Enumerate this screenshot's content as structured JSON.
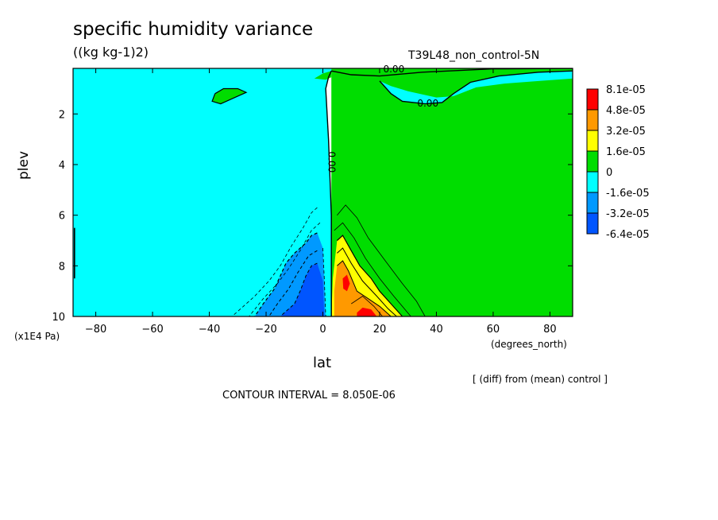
{
  "chart_data": {
    "type": "heatmap",
    "title": "specific humidity variance",
    "subtitle": "((kg kg-1)2)",
    "run_label": "T39L48_non_control-5N",
    "xlabel": "lat",
    "x_unit": "(degrees_north)",
    "ylabel": "plev",
    "y_unit": "(x1E4 Pa)",
    "footnote": "[ (diff) from (mean) control ]",
    "contour_interval_label": "CONTOUR INTERVAL = 8.050E-06",
    "xlim": [
      -88,
      88
    ],
    "ylim": [
      10,
      0.2
    ],
    "x_ticks": [
      -80,
      -60,
      -40,
      -20,
      0,
      20,
      40,
      60,
      80
    ],
    "y_ticks": [
      2,
      4,
      6,
      8,
      10
    ],
    "legend": {
      "placement": "right",
      "colors": [
        "#ff0000",
        "#ff9900",
        "#ffff00",
        "#00dd00",
        "#00ffff",
        "#0099ff",
        "#0055ff"
      ],
      "labels": [
        "8.1e-05",
        "4.8e-05",
        "3.2e-05",
        "1.6e-05",
        "0",
        "-1.6e-05",
        "-3.2e-05",
        "-6.4e-05"
      ]
    },
    "contour_labels": [
      {
        "text": "0.00",
        "x": 25,
        "y": 0.25,
        "rotate": 0
      },
      {
        "text": "0.00",
        "x": 37,
        "y": 1.6,
        "rotate": 0
      },
      {
        "text": "0.00",
        "x": 3,
        "y": 3.9,
        "rotate": 90
      }
    ],
    "regions": [
      {
        "fill": "#00dd00",
        "points": [
          [
            3,
            0.2
          ],
          [
            88,
            0.2
          ],
          [
            88,
            10
          ],
          [
            3,
            10
          ]
        ]
      },
      {
        "fill": "#00dd00",
        "points": [
          [
            3,
            0.3
          ],
          [
            10,
            0.45
          ],
          [
            20,
            0.5
          ],
          [
            35,
            0.35
          ],
          [
            60,
            0.22
          ],
          [
            88,
            0.2
          ],
          [
            88,
            0.2
          ],
          [
            3,
            0.2
          ]
        ]
      },
      {
        "fill": "#00ffff",
        "points": [
          [
            20,
            0.7
          ],
          [
            24,
            1.2
          ],
          [
            28,
            1.5
          ],
          [
            36,
            1.6
          ],
          [
            42,
            1.55
          ],
          [
            46,
            1.2
          ],
          [
            52,
            0.75
          ],
          [
            62,
            0.5
          ],
          [
            76,
            0.35
          ],
          [
            88,
            0.3
          ],
          [
            88,
            0.6
          ],
          [
            76,
            0.7
          ],
          [
            64,
            0.8
          ],
          [
            54,
            0.95
          ],
          [
            46,
            1.3
          ],
          [
            40,
            1.35
          ],
          [
            30,
            1.1
          ],
          [
            24,
            0.9
          ]
        ]
      },
      {
        "fill": "#00ffff",
        "points": [
          [
            3,
            0.2
          ],
          [
            3,
            0.3
          ],
          [
            2,
            0.55
          ],
          [
            1,
            1.0
          ],
          [
            2,
            3.0
          ],
          [
            3,
            6.0
          ],
          [
            3,
            10
          ],
          [
            -88,
            10
          ],
          [
            -88,
            0.2
          ]
        ]
      },
      {
        "fill": "#00dd00",
        "points": [
          [
            -38,
            1.2
          ],
          [
            -35,
            1.0
          ],
          [
            -30,
            1.0
          ],
          [
            -27,
            1.15
          ],
          [
            -31,
            1.35
          ],
          [
            -36,
            1.6
          ],
          [
            -39,
            1.5
          ]
        ]
      },
      {
        "fill": "#00dd00",
        "points": [
          [
            -3,
            0.6
          ],
          [
            0,
            0.4
          ],
          [
            3,
            0.3
          ],
          [
            3,
            0.55
          ],
          [
            1,
            0.65
          ]
        ]
      },
      {
        "fill": "#0099ff",
        "points": [
          [
            -2,
            6.7
          ],
          [
            0,
            7.3
          ],
          [
            0.5,
            8.5
          ],
          [
            1,
            10
          ],
          [
            -24,
            10
          ],
          [
            -21,
            9.5
          ],
          [
            -17,
            8.9
          ],
          [
            -15,
            8.4
          ],
          [
            -13,
            7.9
          ],
          [
            -10,
            7.5
          ],
          [
            -6,
            7.1
          ],
          [
            -4,
            6.8
          ]
        ]
      },
      {
        "fill": "#0055ff",
        "points": [
          [
            -4,
            8.0
          ],
          [
            -2,
            7.9
          ],
          [
            0,
            8.6
          ],
          [
            0.5,
            10
          ],
          [
            -15,
            10
          ],
          [
            -13,
            9.8
          ],
          [
            -10,
            9.5
          ],
          [
            -8,
            9.0
          ],
          [
            -6,
            8.4
          ]
        ]
      },
      {
        "fill": "#ffff00",
        "points": [
          [
            5,
            7.0
          ],
          [
            7,
            6.8
          ],
          [
            10,
            7.4
          ],
          [
            13,
            8.0
          ],
          [
            17,
            8.5
          ],
          [
            20,
            9.0
          ],
          [
            24,
            9.5
          ],
          [
            28,
            10
          ],
          [
            3,
            10
          ],
          [
            3.5,
            8.5
          ]
        ]
      },
      {
        "fill": "#ff9900",
        "points": [
          [
            5,
            8.0
          ],
          [
            7,
            7.8
          ],
          [
            9,
            8.2
          ],
          [
            12,
            9.0
          ],
          [
            16,
            9.3
          ],
          [
            20,
            9.6
          ],
          [
            24,
            10
          ],
          [
            4,
            10
          ],
          [
            4,
            9.0
          ]
        ]
      },
      {
        "fill": "#ff9900",
        "points": [
          [
            6,
            8.6
          ],
          [
            8,
            8.2
          ],
          [
            10,
            8.6
          ],
          [
            10,
            9.1
          ],
          [
            8,
            9.4
          ],
          [
            6,
            9.1
          ]
        ]
      },
      {
        "fill": "#ff0000",
        "points": [
          [
            7,
            8.5
          ],
          [
            8.5,
            8.35
          ],
          [
            9.5,
            8.7
          ],
          [
            8.5,
            9.0
          ],
          [
            7.2,
            8.9
          ]
        ]
      },
      {
        "fill": "#ff0000",
        "points": [
          [
            12,
            9.85
          ],
          [
            14,
            9.65
          ],
          [
            17,
            9.72
          ],
          [
            19,
            10
          ],
          [
            12,
            10
          ]
        ]
      }
    ],
    "contours": [
      {
        "dash": false,
        "width": 1.4,
        "points": [
          [
            3,
            0.3
          ],
          [
            2,
            0.55
          ],
          [
            1,
            1.0
          ],
          [
            2,
            3.0
          ],
          [
            3,
            6.0
          ],
          [
            3,
            10
          ]
        ]
      },
      {
        "dash": false,
        "width": 1.4,
        "points": [
          [
            3,
            0.3
          ],
          [
            10,
            0.45
          ],
          [
            20,
            0.5
          ],
          [
            35,
            0.35
          ],
          [
            60,
            0.22
          ],
          [
            88,
            0.2
          ]
        ]
      },
      {
        "dash": false,
        "width": 1.4,
        "points": [
          [
            20,
            0.7
          ],
          [
            24,
            1.2
          ],
          [
            28,
            1.5
          ],
          [
            36,
            1.6
          ],
          [
            42,
            1.55
          ],
          [
            46,
            1.2
          ],
          [
            52,
            0.75
          ],
          [
            62,
            0.5
          ],
          [
            76,
            0.35
          ],
          [
            88,
            0.3
          ]
        ]
      },
      {
        "dash": false,
        "width": 1.2,
        "points": [
          [
            -38,
            1.2
          ],
          [
            -35,
            1.0
          ],
          [
            -30,
            1.0
          ],
          [
            -27,
            1.15
          ],
          [
            -31,
            1.35
          ],
          [
            -36,
            1.6
          ],
          [
            -39,
            1.5
          ],
          [
            -38,
            1.2
          ]
        ]
      },
      {
        "dash": false,
        "width": 0.8,
        "points": [
          [
            5,
            6.0
          ],
          [
            8,
            5.6
          ],
          [
            12,
            6.1
          ],
          [
            16,
            6.9
          ],
          [
            22,
            7.8
          ],
          [
            28,
            8.7
          ],
          [
            33,
            9.4
          ],
          [
            36,
            10
          ]
        ]
      },
      {
        "dash": false,
        "width": 0.8,
        "points": [
          [
            4,
            6.6
          ],
          [
            7,
            6.3
          ],
          [
            11,
            6.9
          ],
          [
            15,
            7.7
          ],
          [
            20,
            8.5
          ],
          [
            25,
            9.2
          ],
          [
            31,
            10
          ]
        ]
      },
      {
        "dash": false,
        "width": 1.2,
        "points": [
          [
            5,
            7.0
          ],
          [
            7,
            6.8
          ],
          [
            10,
            7.4
          ],
          [
            13,
            8.0
          ],
          [
            17,
            8.5
          ],
          [
            20,
            9.0
          ],
          [
            24,
            9.5
          ],
          [
            28,
            10
          ]
        ]
      },
      {
        "dash": false,
        "width": 1.0,
        "points": [
          [
            5,
            7.5
          ],
          [
            7,
            7.3
          ],
          [
            10,
            7.9
          ],
          [
            14,
            8.6
          ],
          [
            19,
            9.2
          ],
          [
            23,
            9.7
          ],
          [
            26,
            10
          ]
        ]
      },
      {
        "dash": false,
        "width": 1.0,
        "points": [
          [
            5,
            8.0
          ],
          [
            7,
            7.8
          ],
          [
            9,
            8.2
          ],
          [
            12,
            9.0
          ],
          [
            16,
            9.3
          ],
          [
            20,
            9.6
          ],
          [
            24,
            10
          ]
        ]
      },
      {
        "dash": false,
        "width": 0.8,
        "points": [
          [
            10,
            9.5
          ],
          [
            14,
            9.2
          ],
          [
            18,
            9.6
          ],
          [
            21,
            10
          ]
        ]
      },
      {
        "dash": true,
        "width": 0.8,
        "points": [
          [
            -2,
            5.7
          ],
          [
            -4,
            5.9
          ],
          [
            -7,
            6.5
          ],
          [
            -11,
            7.2
          ],
          [
            -15,
            8.0
          ],
          [
            -19,
            8.6
          ],
          [
            -24,
            9.2
          ],
          [
            -28,
            9.6
          ],
          [
            -32,
            10
          ]
        ]
      },
      {
        "dash": true,
        "width": 0.8,
        "points": [
          [
            -1,
            6.3
          ],
          [
            -4,
            6.6
          ],
          [
            -8,
            7.4
          ],
          [
            -12,
            8.1
          ],
          [
            -16,
            8.7
          ],
          [
            -21,
            9.3
          ],
          [
            -26,
            10
          ]
        ]
      },
      {
        "dash": true,
        "width": 1.2,
        "points": [
          [
            -2,
            6.7
          ],
          [
            -4,
            6.8
          ],
          [
            -6,
            7.1
          ],
          [
            -10,
            7.5
          ],
          [
            -13,
            7.9
          ],
          [
            -15,
            8.4
          ],
          [
            -17,
            8.9
          ],
          [
            -21,
            9.5
          ],
          [
            -24,
            10
          ]
        ]
      },
      {
        "dash": true,
        "width": 1.0,
        "points": [
          [
            -2,
            7.4
          ],
          [
            -5,
            7.6
          ],
          [
            -9,
            8.3
          ],
          [
            -12,
            8.9
          ],
          [
            -16,
            9.5
          ],
          [
            -19,
            10
          ]
        ]
      },
      {
        "dash": true,
        "width": 1.0,
        "points": [
          [
            -2,
            7.9
          ],
          [
            -4,
            8.0
          ],
          [
            -6,
            8.4
          ],
          [
            -8,
            9.0
          ],
          [
            -10,
            9.5
          ],
          [
            -13,
            9.8
          ],
          [
            -15,
            10
          ]
        ]
      },
      {
        "dash": true,
        "width": 0.8,
        "points": [
          [
            0,
            7.3
          ],
          [
            0.5,
            8.5
          ],
          [
            1,
            10
          ]
        ]
      },
      {
        "dash": false,
        "width": 1.6,
        "points": [
          [
            -87.5,
            6.5
          ],
          [
            -87.5,
            8.5
          ]
        ]
      }
    ]
  }
}
